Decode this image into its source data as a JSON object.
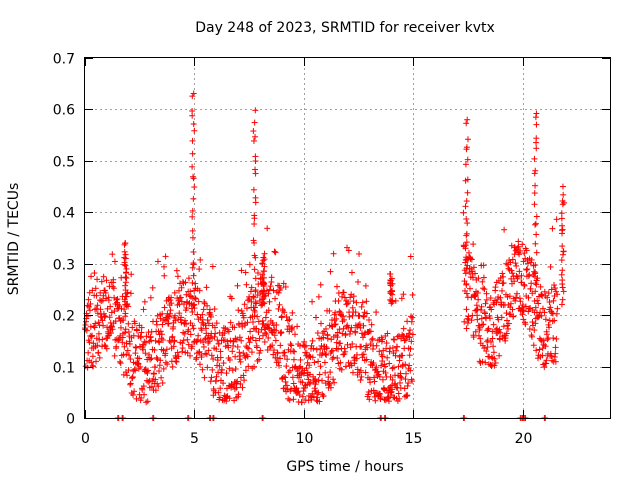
{
  "chart_data": {
    "type": "scatter",
    "title": "Day 248 of 2023, SRMTID for receiver kvtx",
    "xlabel": "GPS time / hours",
    "ylabel": "SRMTID / TECUs",
    "xlim": [
      0,
      24
    ],
    "ylim": [
      0,
      0.7
    ],
    "xticks": [
      0,
      5,
      10,
      15,
      20
    ],
    "yticks": [
      0,
      0.1,
      0.2,
      0.3,
      0.4,
      0.5,
      0.6,
      0.7
    ],
    "xtick_labels": [
      "0",
      "5",
      "10",
      "15",
      "20"
    ],
    "ytick_labels": [
      "0",
      "0.1",
      "0.2",
      "0.3",
      "0.4",
      "0.5",
      "0.6",
      "0.7"
    ],
    "grid": true,
    "marker": "+",
    "series_color": "#ff0000",
    "data_segments": [
      {
        "t_start": 0.0,
        "t_end": 15.0
      },
      {
        "t_start": 17.3,
        "t_end": 21.6
      }
    ],
    "peaks": [
      {
        "x": 4.95,
        "y": 0.64
      },
      {
        "x": 7.75,
        "y": 0.6
      },
      {
        "x": 8.15,
        "y": 0.32
      },
      {
        "x": 1.85,
        "y": 0.34
      },
      {
        "x": 14.0,
        "y": 0.28
      },
      {
        "x": 17.45,
        "y": 0.58
      },
      {
        "x": 20.6,
        "y": 0.6
      },
      {
        "x": 21.85,
        "y": 0.45
      }
    ],
    "zero_markers_x": [
      1.5,
      1.7,
      3.1,
      4.7,
      5.7,
      5.85,
      8.1,
      13.5,
      13.7,
      17.3,
      19.9,
      20.0,
      20.1,
      21.0
    ]
  }
}
